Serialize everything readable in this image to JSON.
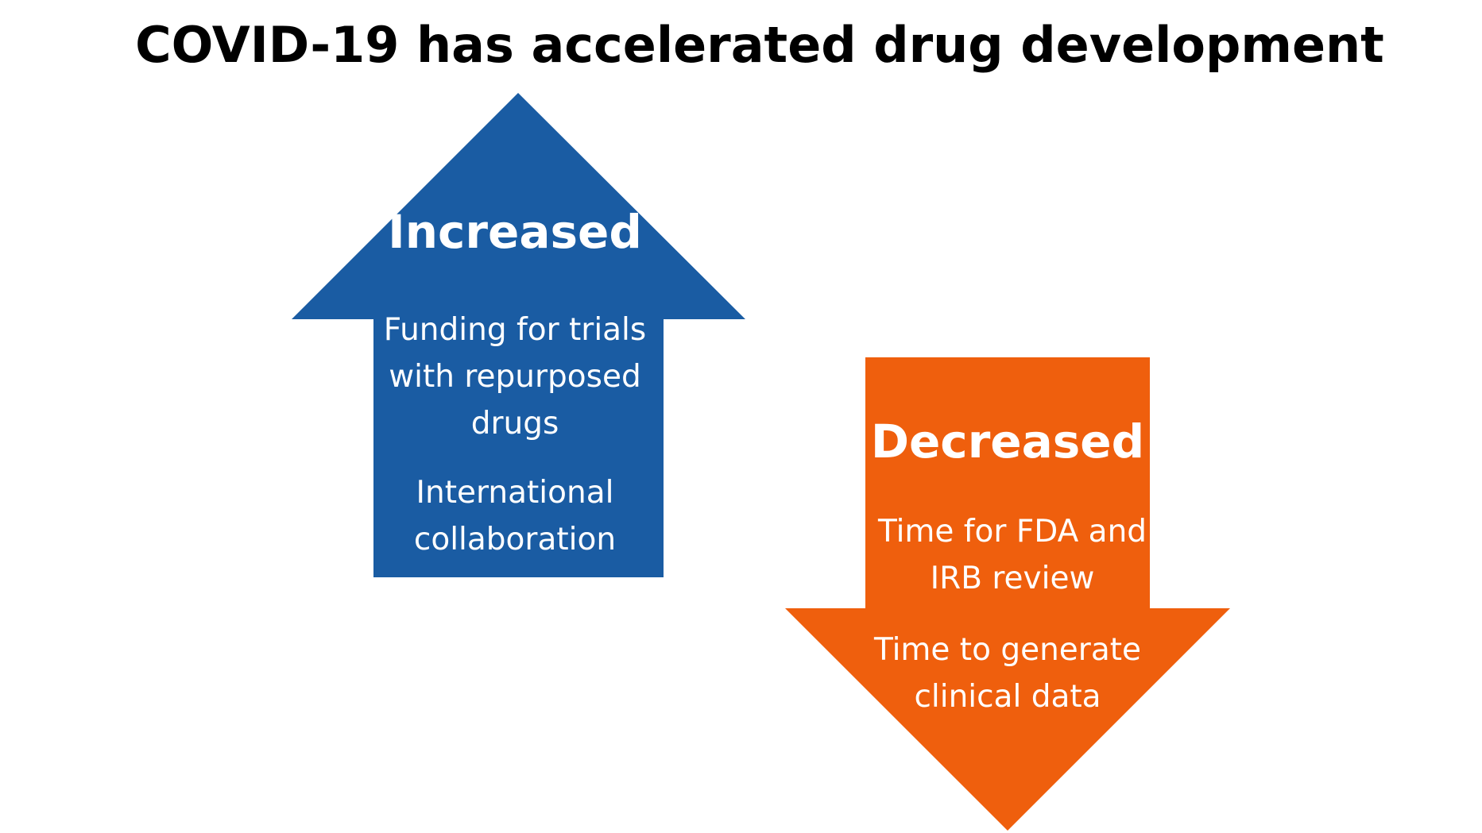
{
  "title": "COVID-19 has accelerated drug development",
  "colors": {
    "increase_arrow": "#1a5ca3",
    "decrease_arrow": "#ef5f0d",
    "title_text": "#000000",
    "arrow_text": "#ffffff"
  },
  "increase": {
    "heading": "Increased",
    "items": [
      {
        "lines": [
          "Funding for trials",
          "with repurposed",
          "drugs"
        ]
      },
      {
        "lines": [
          "International",
          "collaboration"
        ]
      }
    ]
  },
  "decrease": {
    "heading": "Decreased",
    "items": [
      {
        "lines": [
          "Time for FDA and",
          "IRB review"
        ]
      },
      {
        "lines": [
          "Time to generate",
          "clinical data"
        ]
      }
    ]
  }
}
